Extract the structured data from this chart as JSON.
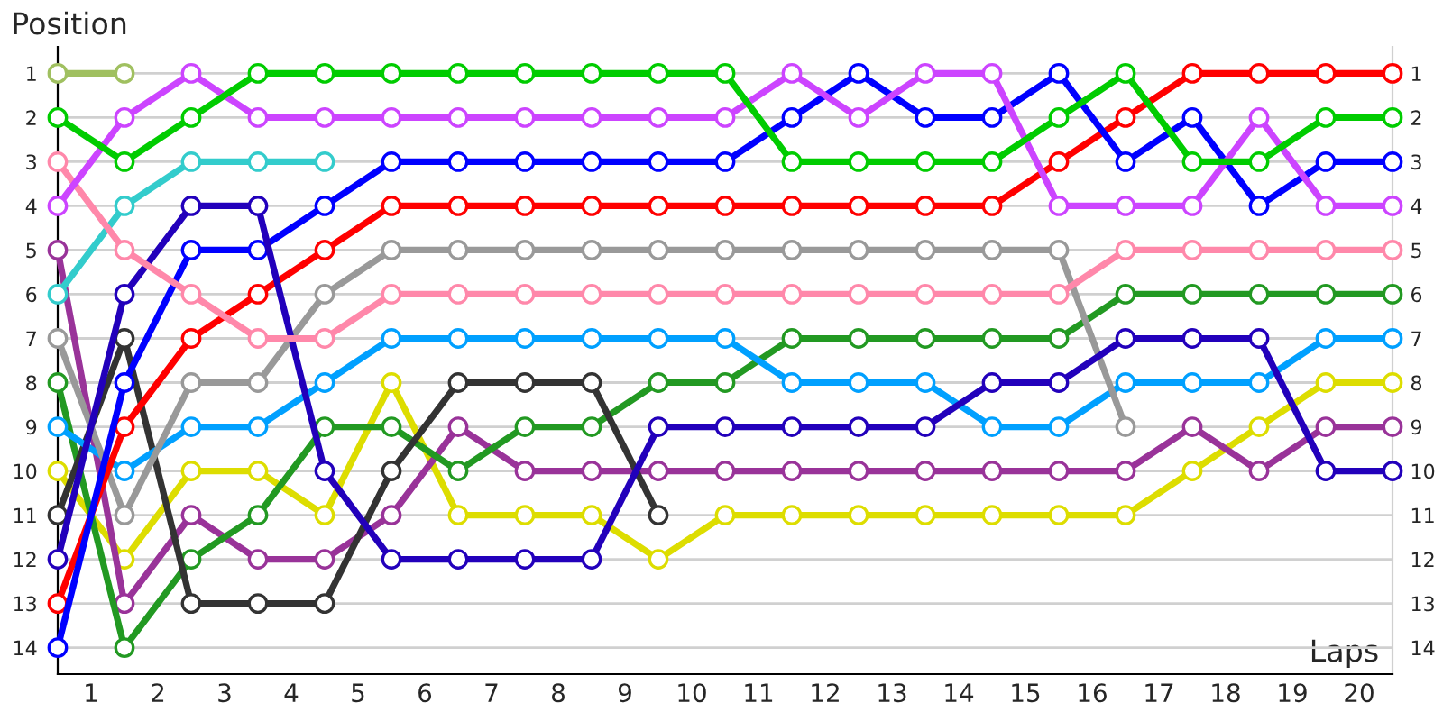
{
  "chart_data": {
    "type": "line",
    "xlabel": "Laps",
    "ylabel": "Position",
    "x": [
      0,
      1,
      2,
      3,
      4,
      5,
      6,
      7,
      8,
      9,
      10,
      11,
      12,
      13,
      14,
      15,
      16,
      17,
      18,
      19,
      20
    ],
    "xlim": [
      0,
      20
    ],
    "xticks": [
      {
        "value": 0.5,
        "label": "1"
      },
      {
        "value": 1.5,
        "label": "2"
      },
      {
        "value": 2.5,
        "label": "3"
      },
      {
        "value": 3.5,
        "label": "4"
      },
      {
        "value": 4.5,
        "label": "5"
      },
      {
        "value": 5.5,
        "label": "6"
      },
      {
        "value": 6.5,
        "label": "7"
      },
      {
        "value": 7.5,
        "label": "8"
      },
      {
        "value": 8.5,
        "label": "9"
      },
      {
        "value": 9.5,
        "label": "10"
      },
      {
        "value": 10.5,
        "label": "11"
      },
      {
        "value": 11.5,
        "label": "12"
      },
      {
        "value": 12.5,
        "label": "13"
      },
      {
        "value": 13.5,
        "label": "14"
      },
      {
        "value": 14.5,
        "label": "15"
      },
      {
        "value": 15.5,
        "label": "16"
      },
      {
        "value": 16.5,
        "label": "17"
      },
      {
        "value": 17.5,
        "label": "18"
      },
      {
        "value": 18.5,
        "label": "19"
      },
      {
        "value": 19.5,
        "label": "20"
      }
    ],
    "ylim": [
      14.6,
      0.4
    ],
    "yticks": [
      1,
      2,
      3,
      4,
      5,
      6,
      7,
      8,
      9,
      10,
      11,
      12,
      13,
      14
    ],
    "y2lim": [
      14.6,
      0.4
    ],
    "y2ticks": [
      1,
      2,
      3,
      4,
      5,
      6,
      7,
      8,
      9,
      10,
      11,
      12,
      13,
      14
    ],
    "grid": true,
    "legend": false,
    "marker": "circle",
    "line_style": "solid",
    "series": [
      {
        "color": "#a0c060",
        "values": [
          1,
          1,
          null,
          null,
          null,
          null,
          null,
          null,
          null,
          null,
          null,
          null,
          null,
          null,
          null,
          null,
          null,
          null,
          null,
          null,
          null
        ]
      },
      {
        "color": "#00cc00",
        "values": [
          2,
          3,
          2,
          1,
          1,
          1,
          1,
          1,
          1,
          1,
          1,
          3,
          3,
          3,
          3,
          2,
          1,
          3,
          3,
          2,
          2
        ]
      },
      {
        "color": "#cc44ff",
        "values": [
          4,
          2,
          1,
          2,
          2,
          2,
          2,
          2,
          2,
          2,
          2,
          1,
          2,
          1,
          1,
          4,
          4,
          4,
          2,
          4,
          4
        ]
      },
      {
        "color": "#ff88aa",
        "values": [
          3,
          5,
          6,
          7,
          7,
          6,
          6,
          6,
          6,
          6,
          6,
          6,
          6,
          6,
          6,
          6,
          5,
          5,
          5,
          5,
          5
        ]
      },
      {
        "color": "#33cccc",
        "values": [
          6,
          4,
          3,
          3,
          3,
          null,
          null,
          null,
          null,
          null,
          null,
          null,
          null,
          null,
          null,
          null,
          null,
          null,
          null,
          null,
          null
        ]
      },
      {
        "color": "#2200bb",
        "values": [
          12,
          6,
          4,
          4,
          10,
          12,
          12,
          12,
          12,
          9,
          9,
          9,
          9,
          9,
          8,
          8,
          7,
          7,
          7,
          10,
          10
        ]
      },
      {
        "color": "#0000ff",
        "values": [
          14,
          8,
          5,
          5,
          4,
          3,
          3,
          3,
          3,
          3,
          3,
          2,
          1,
          2,
          2,
          1,
          3,
          2,
          4,
          3,
          3
        ]
      },
      {
        "color": "#ff0000",
        "values": [
          13,
          9,
          7,
          6,
          5,
          4,
          4,
          4,
          4,
          4,
          4,
          4,
          4,
          4,
          4,
          3,
          2,
          1,
          1,
          1,
          1
        ]
      },
      {
        "color": "#999999",
        "values": [
          7,
          11,
          8,
          8,
          6,
          5,
          5,
          5,
          5,
          5,
          5,
          5,
          5,
          5,
          5,
          5,
          9,
          null,
          null,
          null,
          null
        ]
      },
      {
        "color": "#00a0ff",
        "values": [
          9,
          10,
          9,
          9,
          8,
          7,
          7,
          7,
          7,
          7,
          7,
          8,
          8,
          8,
          9,
          9,
          8,
          8,
          8,
          7,
          7
        ]
      },
      {
        "color": "#333333",
        "values": [
          11,
          7,
          13,
          13,
          13,
          10,
          8,
          8,
          8,
          11,
          null,
          null,
          null,
          null,
          null,
          null,
          null,
          null,
          null,
          null,
          null
        ]
      },
      {
        "color": "#229922",
        "values": [
          8,
          14,
          12,
          11,
          9,
          9,
          10,
          9,
          9,
          8,
          8,
          7,
          7,
          7,
          7,
          7,
          6,
          6,
          6,
          6,
          6
        ]
      },
      {
        "color": "#993399",
        "values": [
          5,
          13,
          11,
          12,
          12,
          11,
          9,
          10,
          10,
          10,
          10,
          10,
          10,
          10,
          10,
          10,
          10,
          9,
          10,
          9,
          9
        ]
      },
      {
        "color": "#dddd00",
        "values": [
          10,
          12,
          10,
          10,
          11,
          8,
          11,
          11,
          11,
          12,
          11,
          11,
          11,
          11,
          11,
          11,
          11,
          10,
          9,
          8,
          8
        ]
      }
    ]
  }
}
